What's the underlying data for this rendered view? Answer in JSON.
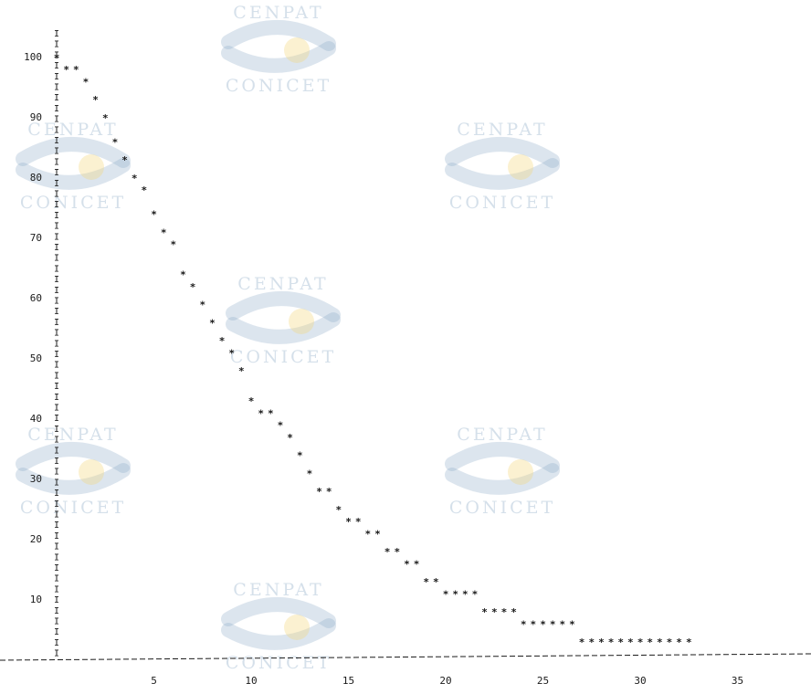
{
  "chart_data": {
    "type": "scatter",
    "title": "",
    "xlabel": "",
    "ylabel": "",
    "xlim": [
      0,
      38
    ],
    "ylim": [
      0,
      100
    ],
    "x_ticks": [
      5,
      10,
      15,
      20,
      25,
      30,
      35
    ],
    "y_ticks": [
      100,
      90,
      80,
      70,
      60,
      50,
      40,
      30,
      20,
      10
    ],
    "y_tick_text": [
      "100",
      "90",
      "80",
      "70",
      "60",
      "50",
      "40",
      "30",
      "20",
      "10"
    ],
    "x_tick_text": [
      "5",
      "10",
      "15",
      "20",
      "25",
      "30",
      "35"
    ],
    "marker": "*",
    "axis_char": "I",
    "grid": false,
    "series": [
      {
        "x": [
          0,
          0.5,
          1,
          1.5,
          2,
          2.5,
          3,
          3.5,
          4,
          4.5,
          5,
          5.5,
          6,
          6.5,
          7,
          7.5,
          8,
          8.5,
          9,
          9.5,
          10,
          10.5,
          11,
          11.5,
          12,
          12.5,
          13,
          13.5,
          14,
          14.5,
          15,
          15.5,
          16,
          16.5,
          17,
          17.5,
          18,
          18.5,
          19,
          19.5,
          20,
          20.5,
          21,
          21.5,
          22,
          22.5,
          23,
          23.5,
          24,
          24.5,
          25,
          25.5,
          26,
          26.5,
          27,
          27.5,
          28,
          28.5,
          29,
          29.5,
          30,
          30.5,
          31,
          31.5,
          32,
          32.5
        ],
        "y": [
          100,
          98,
          98,
          96,
          93,
          90,
          86,
          83,
          80,
          78,
          74,
          71,
          69,
          64,
          62,
          59,
          56,
          53,
          51,
          48,
          43,
          41,
          41,
          39,
          37,
          34,
          31,
          28,
          28,
          25,
          23,
          23,
          21,
          21,
          18,
          18,
          16,
          16,
          13,
          13,
          11,
          11,
          11,
          11,
          8,
          8,
          8,
          8,
          6,
          6,
          6,
          6,
          6,
          6,
          3,
          3,
          3,
          3,
          3,
          3,
          3,
          3,
          3,
          3,
          3,
          3
        ]
      }
    ]
  },
  "watermark": {
    "line1": "CENPAT",
    "line2": "CONICET",
    "logo_colors": [
      "#8aa9c6",
      "#f3d67a"
    ]
  }
}
